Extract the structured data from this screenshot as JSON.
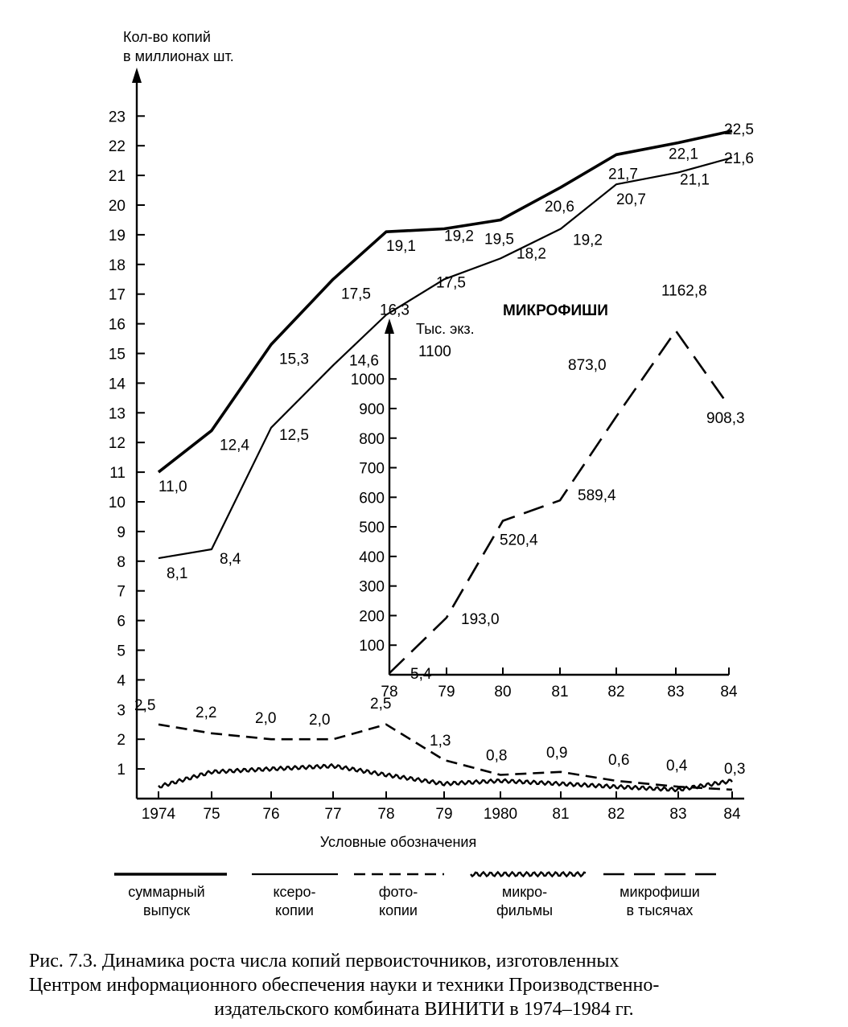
{
  "chart_data": [
    {
      "type": "line",
      "ylabel_line1": "Кол-во копий",
      "ylabel_line2": "в миллионах шт.",
      "x": [
        "1974",
        "75",
        "76",
        "77",
        "78",
        "79",
        "1980",
        "81",
        "82",
        "83",
        "84"
      ],
      "yticks": [
        "1",
        "2",
        "3",
        "4",
        "5",
        "6",
        "7",
        "8",
        "9",
        "10",
        "11",
        "12",
        "13",
        "14",
        "15",
        "16",
        "17",
        "18",
        "19",
        "20",
        "21",
        "22",
        "23"
      ],
      "ylim": [
        0,
        23
      ],
      "series": [
        {
          "name": "суммарный выпуск",
          "style": "solid-bold",
          "values": [
            11.0,
            12.4,
            15.3,
            17.5,
            19.1,
            19.2,
            19.5,
            20.6,
            21.7,
            22.1,
            22.5
          ],
          "labels": [
            "11,0",
            "12,4",
            "15,3",
            "17,5",
            "19,1",
            "19,2",
            "19,5",
            "20,6",
            "21,7",
            "22,1",
            "22,5"
          ]
        },
        {
          "name": "ксерокопии",
          "style": "solid",
          "values": [
            8.1,
            8.4,
            12.5,
            14.6,
            16.3,
            17.5,
            18.2,
            19.2,
            20.7,
            21.1,
            21.6
          ],
          "labels": [
            "8,1",
            "8,4",
            "12,5",
            "14,6",
            "16,3",
            "17,5",
            "18,2",
            "19,2",
            "20,7",
            "21,1",
            "21,6"
          ]
        },
        {
          "name": "фотокопии",
          "style": "dashed",
          "values": [
            2.5,
            2.2,
            2.0,
            2.0,
            2.5,
            1.3,
            0.8,
            0.9,
            0.6,
            0.4,
            0.3
          ],
          "labels": [
            "2,5",
            "2,2",
            "2,0",
            "2,0",
            "2,5",
            "1,3",
            "0,8",
            "0,9",
            "0,6",
            "0,4",
            "0,3"
          ]
        },
        {
          "name": "микрофильмы",
          "style": "wavy",
          "values": [
            0.4,
            0.9,
            1.0,
            1.1,
            0.8,
            0.5,
            0.6,
            0.5,
            0.4,
            0.3,
            0.6
          ],
          "labels": []
        }
      ]
    },
    {
      "type": "line",
      "title": "МИКРОФИШИ",
      "ylabel": "Тыс. экз.",
      "ytop_label": "1100",
      "x": [
        "78",
        "79",
        "80",
        "81",
        "82",
        "83",
        "84"
      ],
      "yticks": [
        "100",
        "200",
        "300",
        "400",
        "500",
        "600",
        "700",
        "800",
        "900",
        "1000"
      ],
      "ylim": [
        0,
        1100
      ],
      "series": [
        {
          "name": "микрофиши в тысячах",
          "style": "long-dashed",
          "values": [
            5.4,
            193.0,
            520.4,
            589.4,
            873.0,
            1162.8,
            908.3
          ],
          "labels": [
            "5,4",
            "193,0",
            "520,4",
            "589,4",
            "873,0",
            "1162,8",
            "908,3"
          ]
        }
      ]
    }
  ],
  "legend": {
    "title": "Условные обозначения",
    "items": [
      {
        "style": "solid-bold",
        "line1": "суммарный",
        "line2": "выпуск"
      },
      {
        "style": "solid",
        "line1": "ксеро-",
        "line2": "копии"
      },
      {
        "style": "dashed",
        "line1": "фото-",
        "line2": "копии"
      },
      {
        "style": "wavy",
        "line1": "микро-",
        "line2": "фильмы"
      },
      {
        "style": "long-dashed",
        "line1": "микрофиши",
        "line2": "в тысячах"
      }
    ]
  },
  "caption": {
    "line1": "Рис. 7.3. Динамика роста числа копий первоисточников, изготовленных",
    "line2": "Центром информационного обеспечения науки и техники Производственно-",
    "line3": "издательского комбината ВИНИТИ в 1974–1984 гг."
  }
}
